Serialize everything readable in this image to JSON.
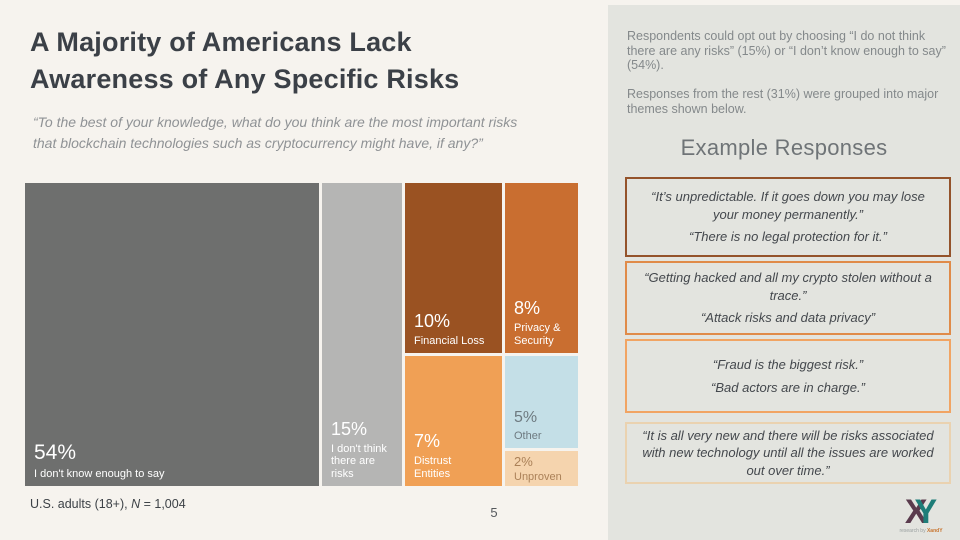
{
  "slide": {
    "title": "A Majority of Americans Lack\nAwareness of Any Specific Risks",
    "subtitle": "“To the best of your knowledge, what do you think are the most important risks\nthat blockchain technologies such as cryptocurrency might have, if any?”",
    "footnote_prefix": "U.S. adults (18+), ",
    "footnote_n": "N",
    "footnote_suffix": " = 1,004",
    "page_number": "5",
    "background_color": "#f6f3ee"
  },
  "chart_data": {
    "type": "treemap",
    "title": "A Majority of Americans Lack Awareness of Any Specific Risks",
    "question": "To the best of your knowledge, what do you think are the most important risks that blockchain technologies such as cryptocurrency might have, if any?",
    "sample": "U.S. adults (18+), N = 1,004",
    "unit": "%",
    "categories": [
      "I don't know enough to say",
      "I don't think there are risks",
      "Financial Loss",
      "Distrust Entities",
      "Privacy & Security",
      "Other",
      "Unproven"
    ],
    "values": [
      54,
      15,
      10,
      7,
      8,
      5,
      2
    ],
    "segments": [
      {
        "pct": "54%",
        "label": "I don't know enough to say",
        "color": "#6e6f6e",
        "text_color": "#ffffff"
      },
      {
        "pct": "15%",
        "label": "I don't think\nthere are risks",
        "color": "#b5b5b4",
        "text_color": "#ffffff"
      },
      {
        "pct": "10%",
        "label": "Financial Loss",
        "color": "#9a5222",
        "text_color": "#ffffff"
      },
      {
        "pct": "7%",
        "label": "Distrust\nEntities",
        "color": "#f0a055",
        "text_color": "#ffffff"
      },
      {
        "pct": "8%",
        "label": "Privacy &\nSecurity",
        "color": "#c96e30",
        "text_color": "#ffffff"
      },
      {
        "pct": "5%",
        "label": "Other",
        "color": "#c4dfe7",
        "text_color": "#6e7a80"
      },
      {
        "pct": "2%",
        "label": "Unproven",
        "color": "#f5d4ae",
        "text_color": "#ab8158"
      }
    ]
  },
  "sidebar": {
    "background_color": "#e3e4df",
    "para1": "Respondents could opt out by choosing “I do not think there are any risks” (15%) or “I don’t know enough to say” (54%).",
    "para2": "Responses from the rest (31%) were grouped into major themes shown below.",
    "heading": "Example Responses",
    "quote_boxes": [
      {
        "border_color": "#94532b",
        "quote1": "“It’s unpredictable. If it goes down you may lose your money permanently.”",
        "quote2": "“There is no legal protection for it.”"
      },
      {
        "border_color": "#e08b49",
        "quote1": "“Getting hacked and all my crypto stolen without a trace.”",
        "quote2": "“Attack risks and data privacy”"
      },
      {
        "border_color": "#f1a463",
        "quote1": "“Fraud is the biggest risk.”",
        "quote2": "“Bad actors are in charge.”"
      },
      {
        "border_color": "#ead2b0",
        "quote1": "“It is all very new and there will be risks associated with new technology until all the issues are worked out over time.”",
        "quote2": ""
      }
    ],
    "logo": {
      "letter_x": "X",
      "letter_y": "Y",
      "caption_prefix": "research by ",
      "caption_brand": "XandY",
      "color_x": "#5a3b4d",
      "color_y": "#1e7d78"
    }
  }
}
